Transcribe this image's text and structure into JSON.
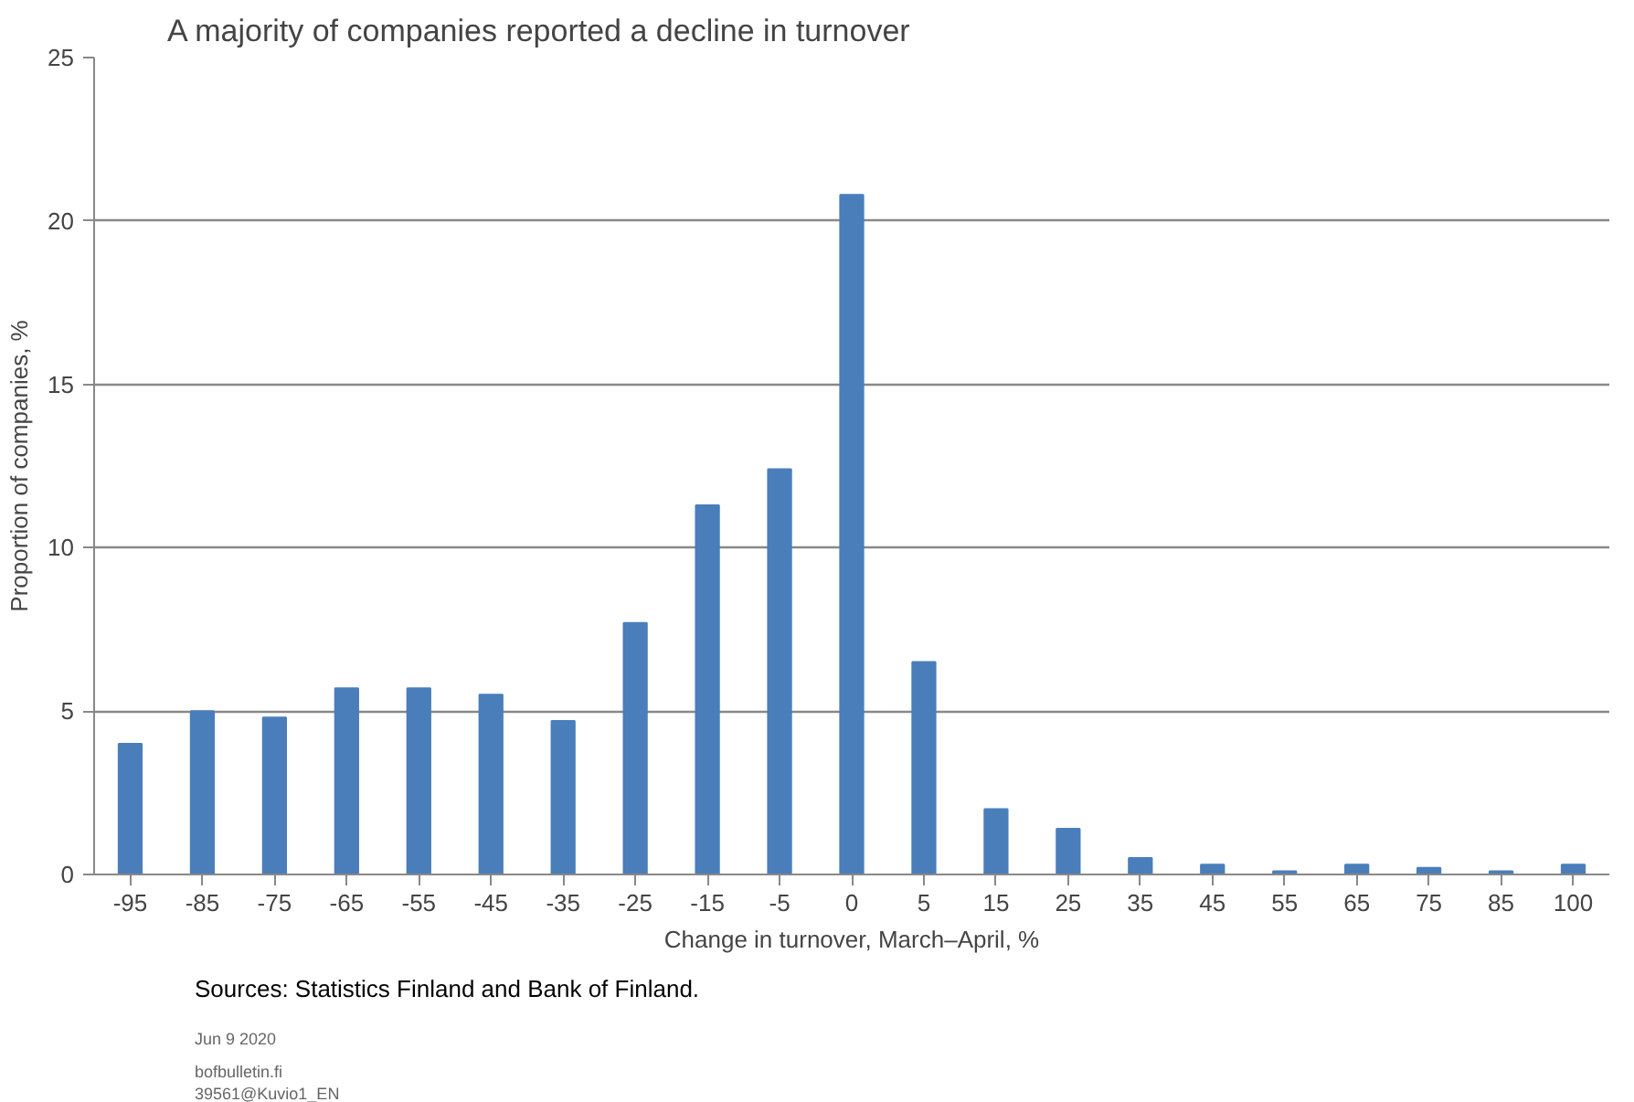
{
  "chart_data": {
    "type": "bar",
    "title": "A majority of companies reported a decline in turnover",
    "xlabel": "Change in turnover, March–April, %",
    "ylabel": "Proportion of companies, %",
    "categories": [
      "-95",
      "-85",
      "-75",
      "-65",
      "-55",
      "-45",
      "-35",
      "-25",
      "-15",
      "-5",
      "0",
      "5",
      "15",
      "25",
      "35",
      "45",
      "55",
      "65",
      "75",
      "85",
      "100"
    ],
    "values": [
      4.0,
      5.0,
      4.8,
      5.7,
      5.7,
      5.5,
      4.7,
      7.7,
      11.3,
      12.4,
      20.8,
      6.5,
      2.0,
      1.4,
      0.5,
      0.3,
      0.1,
      0.3,
      0.2,
      0.1,
      0.3
    ],
    "color": "#4a7ebb",
    "ylim": [
      0,
      25
    ],
    "yticks": [
      0,
      5,
      10,
      15,
      20,
      25
    ],
    "grid": "y",
    "annotations": [
      "Sources: Statistics Finland and Bank of Finland.",
      "Jun 9 2020",
      "bofbulletin.fi",
      "39561@Kuvio1_EN"
    ]
  }
}
